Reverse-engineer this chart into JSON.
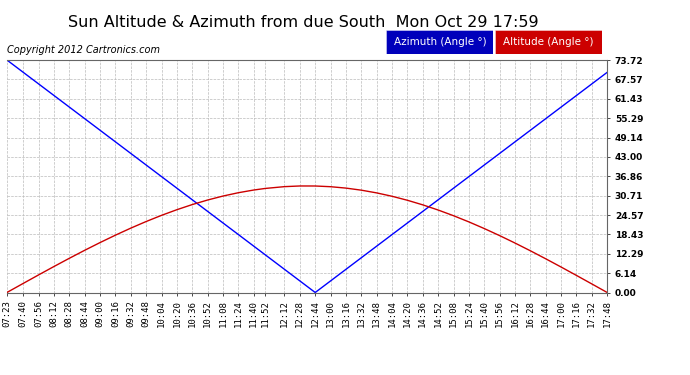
{
  "title": "Sun Altitude & Azimuth from due South  Mon Oct 29 17:59",
  "copyright": "Copyright 2012 Cartronics.com",
  "y_ticks": [
    0.0,
    6.14,
    12.29,
    18.43,
    24.57,
    30.71,
    36.86,
    43.0,
    49.14,
    55.29,
    61.43,
    67.57,
    73.72
  ],
  "y_max": 73.72,
  "y_min": 0.0,
  "time_labels": [
    "07:23",
    "07:40",
    "07:56",
    "08:12",
    "08:28",
    "08:44",
    "09:00",
    "09:16",
    "09:32",
    "09:48",
    "10:04",
    "10:20",
    "10:36",
    "10:52",
    "11:08",
    "11:24",
    "11:40",
    "11:52",
    "12:12",
    "12:28",
    "12:44",
    "13:00",
    "13:16",
    "13:32",
    "13:48",
    "14:04",
    "14:20",
    "14:36",
    "14:52",
    "15:08",
    "15:24",
    "15:40",
    "15:56",
    "16:12",
    "16:28",
    "16:44",
    "17:00",
    "17:16",
    "17:32",
    "17:48"
  ],
  "azimuth_color": "#0000ff",
  "altitude_color": "#cc0000",
  "legend_azimuth_bg": "#0000bb",
  "legend_altitude_bg": "#cc0000",
  "background_color": "#ffffff",
  "grid_color": "#bbbbbb",
  "title_fontsize": 11.5,
  "copyright_fontsize": 7,
  "axis_label_fontsize": 6.5,
  "legend_fontsize": 7.5,
  "max_altitude": 33.8,
  "solar_noon_label": "12:44",
  "sunrise_label": "07:23",
  "sunset_label": "17:48"
}
